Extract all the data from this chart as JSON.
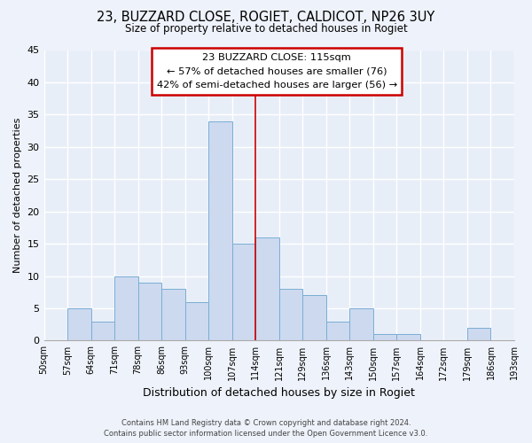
{
  "title": "23, BUZZARD CLOSE, ROGIET, CALDICOT, NP26 3UY",
  "subtitle": "Size of property relative to detached houses in Rogiet",
  "xlabel": "Distribution of detached houses by size in Rogiet",
  "ylabel": "Number of detached properties",
  "bin_labels": [
    "50sqm",
    "57sqm",
    "64sqm",
    "71sqm",
    "78sqm",
    "86sqm",
    "93sqm",
    "100sqm",
    "107sqm",
    "114sqm",
    "121sqm",
    "129sqm",
    "136sqm",
    "143sqm",
    "150sqm",
    "157sqm",
    "164sqm",
    "172sqm",
    "179sqm",
    "186sqm",
    "193sqm"
  ],
  "bar_heights": [
    0,
    5,
    3,
    10,
    9,
    8,
    6,
    34,
    15,
    16,
    8,
    7,
    3,
    5,
    1,
    1,
    0,
    0,
    2,
    0
  ],
  "bar_color": "#ccd9ef",
  "bar_edge_color": "#7aaed4",
  "vline_x": 8,
  "vline_color": "#cc0000",
  "ylim": [
    0,
    45
  ],
  "yticks": [
    0,
    5,
    10,
    15,
    20,
    25,
    30,
    35,
    40,
    45
  ],
  "annotation_title": "23 BUZZARD CLOSE: 115sqm",
  "annotation_line1": "← 57% of detached houses are smaller (76)",
  "annotation_line2": "42% of semi-detached houses are larger (56) →",
  "annotation_box_color": "#ffffff",
  "annotation_box_edge": "#cc0000",
  "footnote1": "Contains HM Land Registry data © Crown copyright and database right 2024.",
  "footnote2": "Contains public sector information licensed under the Open Government Licence v3.0.",
  "bg_color": "#eef2fa",
  "grid_color": "#ffffff",
  "plot_bg": "#e8eef8"
}
